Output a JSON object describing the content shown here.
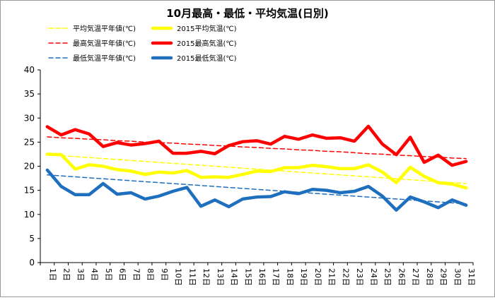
{
  "chart_data": {
    "type": "line",
    "title": "10月最高・最低・平均気温(日別)",
    "categories": [
      "1日",
      "2日",
      "3日",
      "4日",
      "5日",
      "6日",
      "7日",
      "8日",
      "9日",
      "10日",
      "11日",
      "12日",
      "13日",
      "14日",
      "15日",
      "16日",
      "17日",
      "18日",
      "19日",
      "20日",
      "21日",
      "22日",
      "23日",
      "24日",
      "25日",
      "26日",
      "27日",
      "28日",
      "29日",
      "30日",
      "31日"
    ],
    "ylim": [
      0,
      40
    ],
    "yticks": [
      0,
      5,
      10,
      15,
      20,
      25,
      30,
      35,
      40
    ],
    "grid": false,
    "legend_position": "top",
    "series": [
      {
        "name": "平均気温平年値(℃)",
        "style": "dashed",
        "color": "#ffff00",
        "values": [
          22.4,
          22.2,
          22.0,
          21.8,
          21.6,
          21.4,
          21.2,
          21.0,
          20.8,
          20.6,
          20.4,
          20.2,
          20.0,
          19.8,
          19.6,
          19.4,
          19.2,
          19.0,
          18.8,
          18.6,
          18.4,
          18.2,
          18.0,
          17.8,
          17.6,
          17.4,
          17.2,
          17.0,
          16.8,
          16.6,
          16.4
        ]
      },
      {
        "name": "2015平均気温(℃)",
        "style": "solid",
        "color": "#ffff00",
        "values": [
          22.5,
          22.4,
          19.4,
          20.3,
          20.0,
          19.3,
          19.0,
          18.3,
          18.8,
          18.6,
          19.1,
          17.7,
          17.8,
          17.7,
          18.3,
          19.0,
          18.9,
          19.7,
          19.7,
          20.2,
          19.9,
          19.5,
          19.5,
          20.3,
          18.8,
          16.6,
          19.8,
          17.9,
          16.6,
          16.3,
          15.5
        ]
      },
      {
        "name": "最高気温平年値(℃)",
        "style": "dashed",
        "color": "#ff0000",
        "values": [
          26.1,
          25.9,
          25.8,
          25.6,
          25.5,
          25.3,
          25.2,
          25.0,
          24.9,
          24.8,
          24.6,
          24.5,
          24.3,
          24.2,
          24.0,
          23.9,
          23.7,
          23.6,
          23.4,
          23.3,
          23.1,
          23.0,
          22.8,
          22.6,
          22.5,
          22.3,
          22.2,
          22.0,
          21.9,
          21.7,
          21.6
        ]
      },
      {
        "name": "2015最高気温(℃)",
        "style": "solid",
        "color": "#ff0000",
        "values": [
          28.2,
          26.5,
          27.6,
          26.7,
          24.1,
          24.9,
          24.4,
          24.7,
          25.2,
          22.7,
          22.7,
          23.1,
          22.6,
          24.3,
          25.1,
          25.3,
          24.6,
          26.2,
          25.6,
          26.5,
          25.8,
          25.9,
          25.2,
          28.3,
          24.6,
          22.4,
          26.0,
          20.8,
          22.3,
          20.2,
          21.0
        ]
      },
      {
        "name": "最低気温平年値(℃)",
        "style": "dashed",
        "color": "#1f6fbf",
        "values": [
          18.2,
          18.0,
          17.8,
          17.6,
          17.4,
          17.2,
          17.0,
          16.8,
          16.6,
          16.4,
          16.2,
          16.0,
          15.8,
          15.6,
          15.4,
          15.2,
          15.0,
          14.8,
          14.6,
          14.4,
          14.2,
          14.0,
          13.8,
          13.6,
          13.4,
          13.2,
          13.0,
          12.8,
          12.6,
          12.4,
          12.2
        ]
      },
      {
        "name": "2015最低気温(℃)",
        "style": "solid",
        "color": "#1f6fbf",
        "values": [
          19.2,
          15.8,
          14.1,
          14.1,
          16.4,
          14.2,
          14.5,
          13.2,
          13.8,
          14.8,
          15.6,
          11.7,
          13.0,
          11.6,
          13.2,
          13.6,
          13.7,
          14.7,
          14.3,
          15.2,
          15.0,
          14.5,
          14.8,
          15.8,
          13.8,
          10.9,
          13.6,
          12.6,
          11.4,
          13.0,
          11.9
        ]
      }
    ]
  }
}
